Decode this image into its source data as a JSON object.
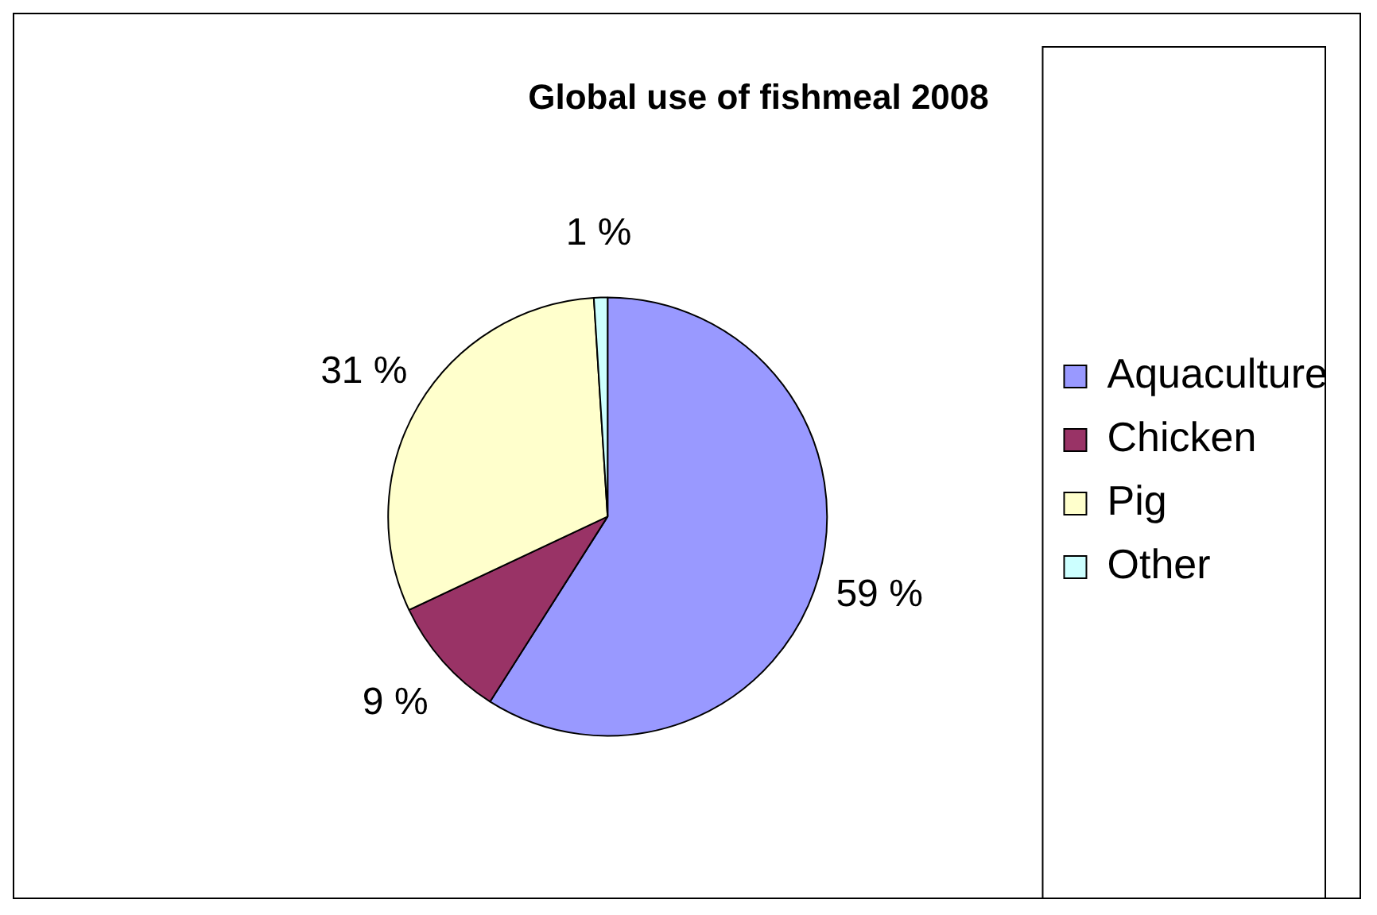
{
  "chart_data": {
    "type": "pie",
    "title": "Global use of fishmeal 2008",
    "categories": [
      "Aquaculture",
      "Chicken",
      "Pig",
      "Other"
    ],
    "values": [
      59,
      9,
      31,
      1
    ],
    "value_labels": [
      "59 %",
      "9 %",
      "31 %",
      "1 %"
    ],
    "colors": [
      "#9999ff",
      "#993366",
      "#ffffcc",
      "#ccffff"
    ],
    "legend": "right"
  }
}
